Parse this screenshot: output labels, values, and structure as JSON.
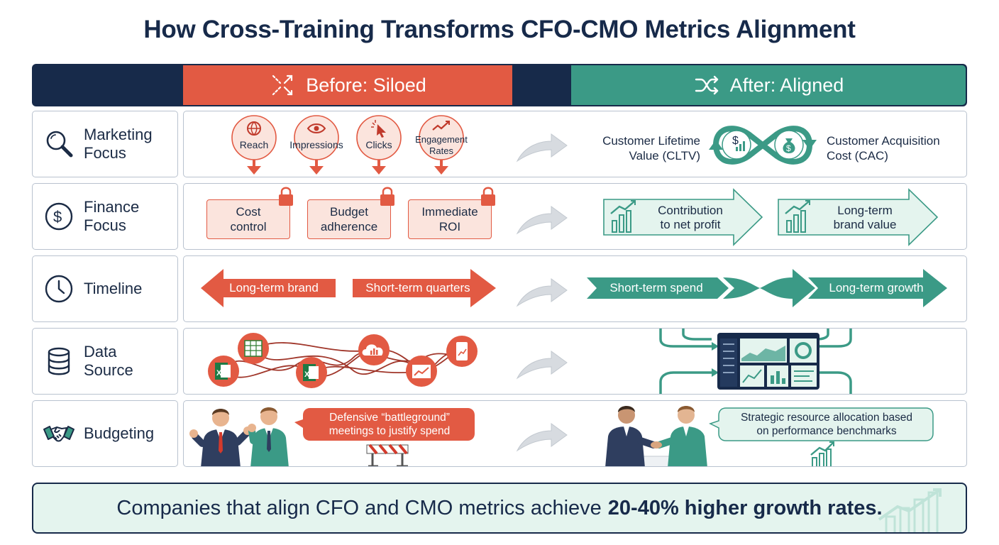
{
  "title": "How Cross-Training Transforms CFO-CMO Metrics Alignment",
  "header": {
    "before": "Before: Siloed",
    "after": "After: Aligned"
  },
  "rows": {
    "marketing": {
      "label": "Marketing\nFocus",
      "before": [
        "Reach",
        "Impressions",
        "Clicks",
        "Engagement\nRates"
      ],
      "after_left": "Customer Lifetime\nValue (CLTV)",
      "after_right": "Customer Acquisition\nCost (CAC)"
    },
    "finance": {
      "label": "Finance\nFocus",
      "before": [
        "Cost\ncontrol",
        "Budget\nadherence",
        "Immediate\nROI"
      ],
      "after": [
        "Contribution\nto net profit",
        "Long-term\nbrand value"
      ]
    },
    "timeline": {
      "label": "Timeline",
      "before_left": "Long-term brand",
      "before_right": "Short-term quarters",
      "after_left": "Short-term spend",
      "after_right": "Long-term growth"
    },
    "data": {
      "label": "Data\nSource"
    },
    "budgeting": {
      "label": "Budgeting",
      "before": "Defensive “battleground”\nmeetings to justify spend",
      "after": "Strategic resource allocation based\non performance benchmarks"
    }
  },
  "footer": {
    "text": "Companies that align CFO and CMO metrics achieve",
    "highlight": "20-40% higher growth rates."
  },
  "colors": {
    "navy": "#172a4a",
    "before": "#e25a43",
    "after": "#3b9a86",
    "after_light": "#e4f4ee",
    "before_light": "#fbe4dd"
  }
}
